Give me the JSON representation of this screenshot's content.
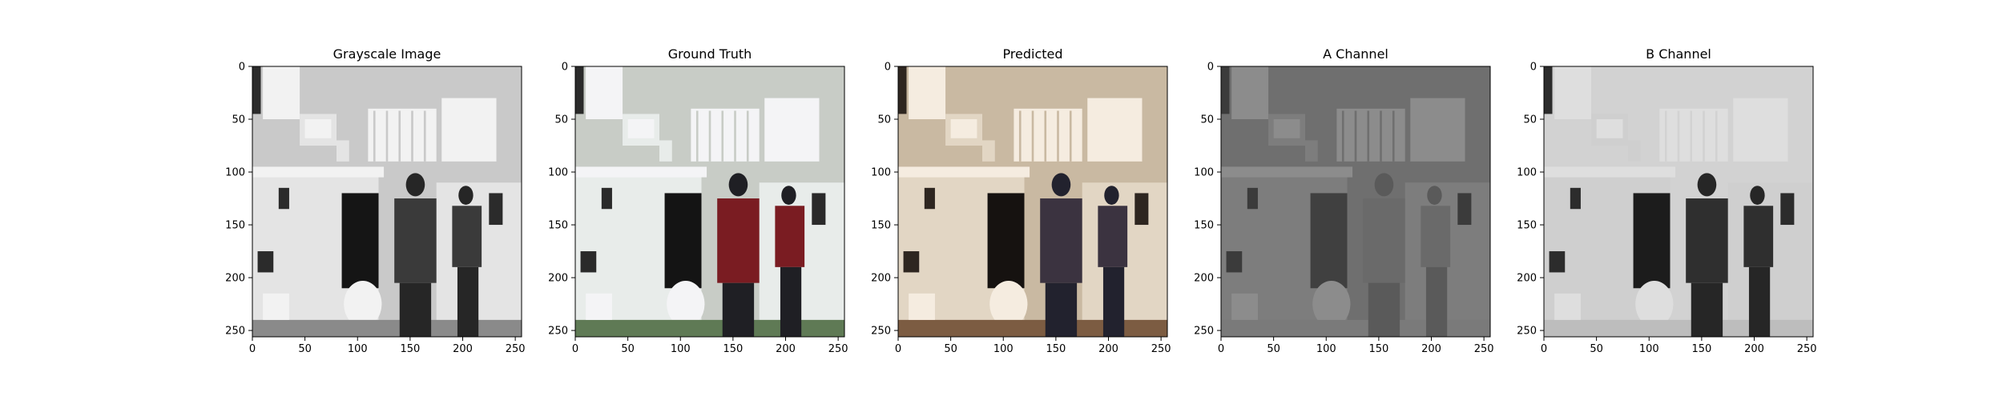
{
  "chart_data": [
    {
      "type": "image",
      "title": "Grayscale Image",
      "tone": "grayscale",
      "x_ticks": [
        0,
        50,
        100,
        150,
        200,
        250
      ],
      "y_ticks": [
        0,
        50,
        100,
        150,
        200,
        250
      ],
      "xlim": [
        0,
        256
      ],
      "ylim": [
        256,
        0
      ]
    },
    {
      "type": "image",
      "title": "Ground Truth",
      "tone": "color",
      "x_ticks": [
        0,
        50,
        100,
        150,
        200,
        250
      ],
      "y_ticks": [
        0,
        50,
        100,
        150,
        200,
        250
      ],
      "xlim": [
        0,
        256
      ],
      "ylim": [
        256,
        0
      ]
    },
    {
      "type": "image",
      "title": "Predicted",
      "tone": "sepia",
      "x_ticks": [
        0,
        50,
        100,
        150,
        200,
        250
      ],
      "y_ticks": [
        0,
        50,
        100,
        150,
        200,
        250
      ],
      "xlim": [
        0,
        256
      ],
      "ylim": [
        256,
        0
      ]
    },
    {
      "type": "image",
      "title": "A Channel",
      "tone": "channel-a",
      "x_ticks": [
        0,
        50,
        100,
        150,
        200,
        250
      ],
      "y_ticks": [
        0,
        50,
        100,
        150,
        200,
        250
      ],
      "xlim": [
        0,
        256
      ],
      "ylim": [
        256,
        0
      ]
    },
    {
      "type": "image",
      "title": "B Channel",
      "tone": "channel-b",
      "x_ticks": [
        0,
        50,
        100,
        150,
        200,
        250
      ],
      "y_ticks": [
        0,
        50,
        100,
        150,
        200,
        250
      ],
      "xlim": [
        0,
        256
      ],
      "ylim": [
        256,
        0
      ]
    }
  ],
  "palettes": {
    "grayscale": {
      "wall": "#c9c9c9",
      "window": "#f2f2f2",
      "machine": "#e4e4e4",
      "dark": "#2b2b2b",
      "floor": "#8a8a8a",
      "person": "#262626",
      "shirt": "#3a3a3a",
      "panel": "#151515"
    },
    "color": {
      "wall": "#c8ccc6",
      "window": "#f4f4f6",
      "machine": "#e8ecea",
      "dark": "#2a2a2a",
      "floor": "#5f7a55",
      "person": "#1f1f24",
      "shirt": "#7a1c22",
      "panel": "#141414"
    },
    "sepia": {
      "wall": "#c9b9a2",
      "window": "#f5ece0",
      "machine": "#e2d6c4",
      "dark": "#2e2620",
      "floor": "#7c5c42",
      "person": "#22222e",
      "shirt": "#3b3340",
      "panel": "#161210"
    },
    "channel-a": {
      "wall": "#6f6f6f",
      "window": "#8c8c8c",
      "machine": "#7d7d7d",
      "dark": "#3b3b3b",
      "floor": "#7a7a7a",
      "person": "#5a5a5a",
      "shirt": "#6a6a6a",
      "panel": "#404040"
    },
    "channel-b": {
      "wall": "#d2d2d2",
      "window": "#dedede",
      "machine": "#cfcfcf",
      "dark": "#2c2c2c",
      "floor": "#bdbdbd",
      "person": "#262626",
      "shirt": "#2f2f2f",
      "panel": "#1c1c1c"
    }
  }
}
